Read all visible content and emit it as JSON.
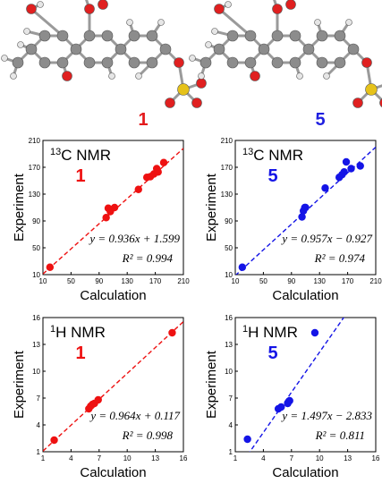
{
  "molecules": [
    {
      "label": "1",
      "color": "#e41a1c"
    },
    {
      "label": "5",
      "color": "#1f1fe0"
    }
  ],
  "colors": {
    "red": "#ee1111",
    "blue": "#1414e6",
    "atom_carbon": "#8c8c8c",
    "atom_oxygen": "#e02020",
    "atom_sulfur": "#e6c21a",
    "atom_hydrogen": "#e6e6e6"
  },
  "chart_data": [
    {
      "type": "scatter",
      "nucleus_sup": "13",
      "nucleus": "C NMR",
      "compound": "1",
      "color": "#ee1111",
      "xlabel": "Calculation",
      "ylabel": "Experiment",
      "xlim": [
        10,
        210
      ],
      "ylim": [
        10,
        210
      ],
      "xticks": [
        10,
        50,
        90,
        130,
        170,
        210
      ],
      "yticks": [
        10,
        50,
        90,
        130,
        170,
        210
      ],
      "equation": "y = 0.936x + 1.599",
      "r2": "R² = 0.994",
      "fit": {
        "slope": 0.936,
        "intercept": 1.599
      },
      "x": [
        20,
        100,
        103,
        106,
        112,
        146,
        158,
        163,
        168,
        172,
        174,
        182
      ],
      "y": [
        21,
        95,
        109,
        104,
        110,
        137,
        155,
        156,
        160,
        168,
        163,
        177
      ]
    },
    {
      "type": "scatter",
      "nucleus_sup": "13",
      "nucleus": "C NMR",
      "compound": "5",
      "color": "#1414e6",
      "xlabel": "Calculation",
      "ylabel": "Experiment",
      "xlim": [
        10,
        210
      ],
      "ylim": [
        10,
        210
      ],
      "xticks": [
        10,
        50,
        90,
        130,
        170,
        210
      ],
      "yticks": [
        10,
        50,
        90,
        130,
        170,
        210
      ],
      "equation": "y = 0.957x − 0.927",
      "r2": "R² = 0.974",
      "fit": {
        "slope": 0.957,
        "intercept": -0.927
      },
      "x": [
        20,
        105,
        107,
        109,
        110,
        138,
        158,
        162,
        165,
        168,
        175,
        188
      ],
      "y": [
        21,
        96,
        105,
        110,
        110,
        139,
        155,
        159,
        163,
        178,
        168,
        172
      ]
    },
    {
      "type": "scatter",
      "nucleus_sup": "1",
      "nucleus": "H NMR",
      "compound": "1",
      "color": "#ee1111",
      "xlabel": "Calculation",
      "ylabel": "Experiment",
      "xlim": [
        1,
        16
      ],
      "ylim": [
        1,
        16
      ],
      "xticks": [
        1,
        4,
        7,
        10,
        13,
        16
      ],
      "yticks": [
        1,
        4,
        7,
        10,
        13,
        16
      ],
      "equation": "y = 0.964x + 0.117",
      "r2": "R² = 0.998",
      "fit": {
        "slope": 0.964,
        "intercept": 0.117
      },
      "x": [
        2.2,
        5.9,
        6.1,
        6.3,
        6.5,
        6.9,
        14.8
      ],
      "y": [
        2.3,
        5.8,
        6.1,
        6.3,
        6.4,
        6.8,
        14.3
      ]
    },
    {
      "type": "scatter",
      "nucleus_sup": "1",
      "nucleus": "H NMR",
      "compound": "5",
      "color": "#1414e6",
      "xlabel": "Calculation",
      "ylabel": "Experiment",
      "xlim": [
        1,
        16
      ],
      "ylim": [
        1,
        16
      ],
      "xticks": [
        1,
        4,
        7,
        10,
        13,
        16
      ],
      "yticks": [
        1,
        4,
        7,
        10,
        13,
        16
      ],
      "equation": "y = 1.497x − 2.833",
      "r2": "R² = 0.811",
      "fit": {
        "slope": 1.497,
        "intercept": -2.833
      },
      "x": [
        2.3,
        5.6,
        5.9,
        6.6,
        6.8,
        9.5
      ],
      "y": [
        2.4,
        5.8,
        6.0,
        6.4,
        6.7,
        14.3
      ]
    }
  ]
}
